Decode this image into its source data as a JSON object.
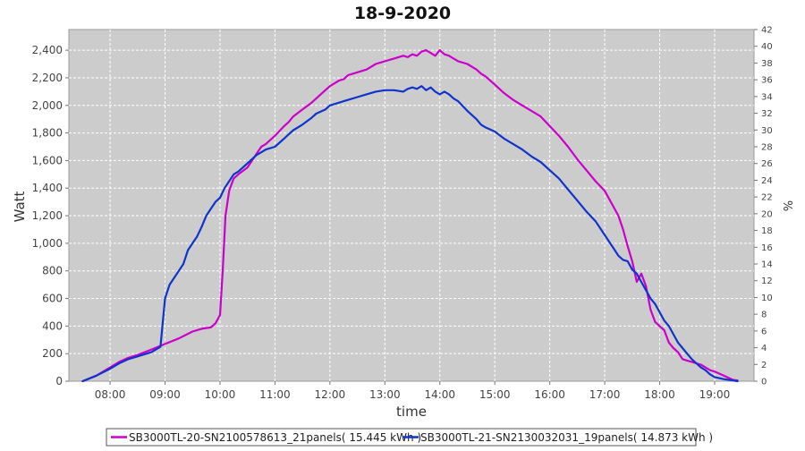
{
  "chart_data": {
    "type": "line",
    "title": "18-9-2020",
    "xlabel": "time",
    "ylabel": "Watt",
    "y2label": "%",
    "x_ticks": [
      "08:00",
      "09:00",
      "10:00",
      "11:00",
      "12:00",
      "13:00",
      "14:00",
      "15:00",
      "16:00",
      "17:00",
      "18:00",
      "19:00"
    ],
    "xlim": [
      "07:15",
      "19:43"
    ],
    "ylim": [
      0,
      2550
    ],
    "y_ticks": [
      0,
      200,
      400,
      600,
      800,
      1000,
      1200,
      1400,
      1600,
      1800,
      2000,
      2200,
      2400
    ],
    "y_tick_labels": [
      "0",
      "200",
      "400",
      "600",
      "800",
      "1,000",
      "1,200",
      "1,400",
      "1,600",
      "1,800",
      "2,000",
      "2,200",
      "2,400"
    ],
    "y2lim": [
      0,
      42
    ],
    "y2_ticks": [
      0,
      2,
      4,
      6,
      8,
      10,
      12,
      14,
      16,
      18,
      20,
      22,
      24,
      26,
      28,
      30,
      32,
      34,
      36,
      38,
      40,
      42
    ],
    "grid": true,
    "background": "#cccccc",
    "legend_position": "bottom",
    "series": [
      {
        "name": "SB3000TL-20-SN2100578613_21panels( 15.445 kWh )",
        "color": "#cc00cc",
        "x": [
          "07:30",
          "07:45",
          "08:00",
          "08:10",
          "08:20",
          "08:30",
          "08:45",
          "09:00",
          "09:15",
          "09:30",
          "09:40",
          "09:50",
          "09:55",
          "10:00",
          "10:03",
          "10:06",
          "10:10",
          "10:15",
          "10:20",
          "10:30",
          "10:40",
          "10:45",
          "10:50",
          "11:00",
          "11:10",
          "11:15",
          "11:20",
          "11:30",
          "11:40",
          "11:45",
          "11:55",
          "12:00",
          "12:10",
          "12:15",
          "12:20",
          "12:30",
          "12:40",
          "12:50",
          "13:00",
          "13:10",
          "13:20",
          "13:25",
          "13:30",
          "13:35",
          "13:40",
          "13:45",
          "13:50",
          "13:55",
          "14:00",
          "14:05",
          "14:10",
          "14:15",
          "14:20",
          "14:30",
          "14:40",
          "14:45",
          "14:50",
          "15:00",
          "15:10",
          "15:20",
          "15:30",
          "15:40",
          "15:50",
          "16:00",
          "16:10",
          "16:20",
          "16:30",
          "16:40",
          "16:50",
          "17:00",
          "17:10",
          "17:15",
          "17:20",
          "17:25",
          "17:30",
          "17:35",
          "17:40",
          "17:45",
          "17:50",
          "17:55",
          "18:00",
          "18:05",
          "18:10",
          "18:15",
          "18:20",
          "18:25",
          "18:30",
          "18:35",
          "18:40",
          "18:45",
          "18:50",
          "18:55",
          "19:00",
          "19:10",
          "19:20",
          "19:25"
        ],
        "y": [
          0,
          40,
          100,
          140,
          170,
          190,
          230,
          270,
          310,
          360,
          380,
          390,
          420,
          480,
          800,
          1200,
          1380,
          1470,
          1500,
          1550,
          1650,
          1700,
          1720,
          1780,
          1850,
          1880,
          1920,
          1970,
          2020,
          2050,
          2110,
          2140,
          2180,
          2190,
          2220,
          2240,
          2260,
          2300,
          2320,
          2340,
          2360,
          2350,
          2370,
          2360,
          2390,
          2400,
          2380,
          2360,
          2400,
          2370,
          2360,
          2340,
          2320,
          2300,
          2260,
          2230,
          2210,
          2150,
          2090,
          2040,
          2000,
          1960,
          1920,
          1850,
          1780,
          1700,
          1610,
          1530,
          1450,
          1380,
          1260,
          1200,
          1100,
          980,
          870,
          720,
          780,
          690,
          520,
          430,
          400,
          370,
          280,
          240,
          210,
          160,
          150,
          140,
          130,
          120,
          100,
          80,
          70,
          40,
          10,
          5
        ]
      },
      {
        "name": "SB3000TL-21-SN2130032031_19panels( 14.873 kWh )",
        "color": "#1133cc",
        "x": [
          "07:30",
          "07:45",
          "08:00",
          "08:10",
          "08:20",
          "08:30",
          "08:45",
          "08:55",
          "09:00",
          "09:05",
          "09:10",
          "09:15",
          "09:20",
          "09:25",
          "09:30",
          "09:35",
          "09:40",
          "09:45",
          "09:50",
          "09:55",
          "10:00",
          "10:05",
          "10:10",
          "10:15",
          "10:20",
          "10:30",
          "10:40",
          "10:45",
          "10:50",
          "11:00",
          "11:10",
          "11:15",
          "11:20",
          "11:30",
          "11:40",
          "11:45",
          "11:55",
          "12:00",
          "12:10",
          "12:15",
          "12:20",
          "12:30",
          "12:40",
          "12:50",
          "13:00",
          "13:10",
          "13:20",
          "13:25",
          "13:30",
          "13:35",
          "13:40",
          "13:45",
          "13:50",
          "13:55",
          "14:00",
          "14:05",
          "14:10",
          "14:15",
          "14:20",
          "14:30",
          "14:40",
          "14:45",
          "14:50",
          "15:00",
          "15:10",
          "15:20",
          "15:30",
          "15:40",
          "15:50",
          "16:00",
          "16:10",
          "16:20",
          "16:30",
          "16:40",
          "16:50",
          "17:00",
          "17:10",
          "17:15",
          "17:20",
          "17:25",
          "17:30",
          "17:35",
          "17:40",
          "17:45",
          "17:50",
          "17:55",
          "18:00",
          "18:05",
          "18:10",
          "18:15",
          "18:20",
          "18:25",
          "18:30",
          "18:35",
          "18:40",
          "18:45",
          "18:50",
          "18:55",
          "19:00",
          "19:10",
          "19:20",
          "19:25"
        ],
        "y": [
          0,
          40,
          90,
          130,
          160,
          180,
          210,
          250,
          600,
          700,
          750,
          800,
          850,
          950,
          1000,
          1050,
          1120,
          1200,
          1250,
          1300,
          1330,
          1400,
          1450,
          1500,
          1520,
          1580,
          1640,
          1660,
          1680,
          1700,
          1760,
          1790,
          1820,
          1860,
          1910,
          1940,
          1970,
          2000,
          2020,
          2030,
          2040,
          2060,
          2080,
          2100,
          2110,
          2110,
          2100,
          2120,
          2130,
          2120,
          2140,
          2110,
          2130,
          2100,
          2080,
          2100,
          2080,
          2050,
          2030,
          1960,
          1900,
          1860,
          1840,
          1810,
          1760,
          1720,
          1680,
          1630,
          1590,
          1530,
          1470,
          1390,
          1310,
          1230,
          1160,
          1060,
          960,
          910,
          880,
          870,
          810,
          780,
          720,
          660,
          600,
          560,
          500,
          440,
          400,
          340,
          280,
          240,
          200,
          160,
          130,
          100,
          80,
          50,
          30,
          15,
          5,
          0
        ]
      }
    ]
  }
}
